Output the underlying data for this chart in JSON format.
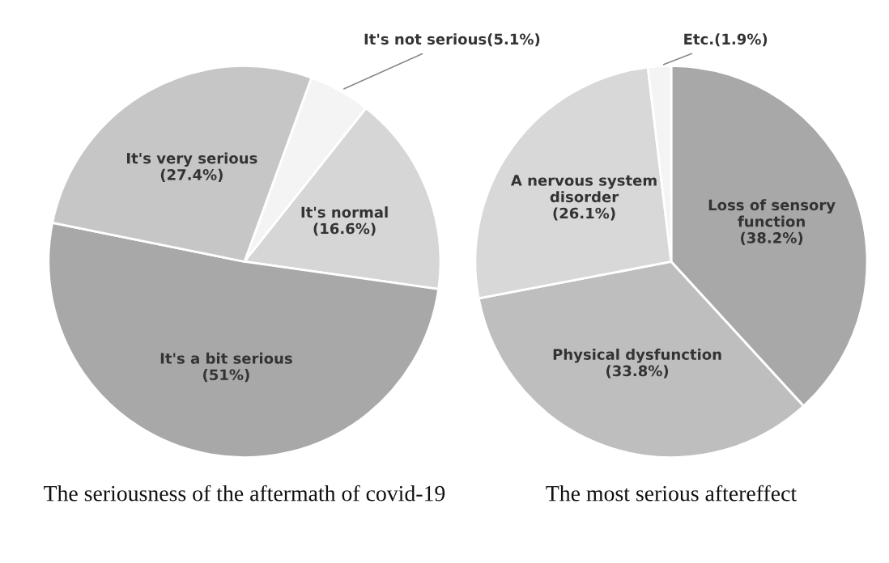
{
  "chart_data": [
    {
      "type": "pie",
      "title": "The seriousness of the aftermath of covid-19",
      "categories": [
        "It's not serious",
        "It's normal",
        "It's a bit serious",
        "It's very serious"
      ],
      "values": [
        5.1,
        16.6,
        51,
        27.4
      ],
      "value_labels": [
        "(5.1%)",
        "(16.6%)",
        "(51%)",
        "(27.4%)"
      ],
      "colors": [
        "#f4f4f4",
        "#d6d6d6",
        "#a8a8a8",
        "#c6c6c6"
      ]
    },
    {
      "type": "pie",
      "title": "The most serious aftereffect",
      "categories": [
        "Loss of sensory function",
        "Physical dysfunction",
        "A nervous system disorder",
        "Etc."
      ],
      "values": [
        38.2,
        33.8,
        26.1,
        1.9
      ],
      "value_labels": [
        "(38.2%)",
        "(33.8%)",
        "(26.1%)",
        "(1.9%)"
      ],
      "colors": [
        "#a8a8a8",
        "#bebebe",
        "#d8d8d8",
        "#f4f4f4"
      ]
    }
  ]
}
